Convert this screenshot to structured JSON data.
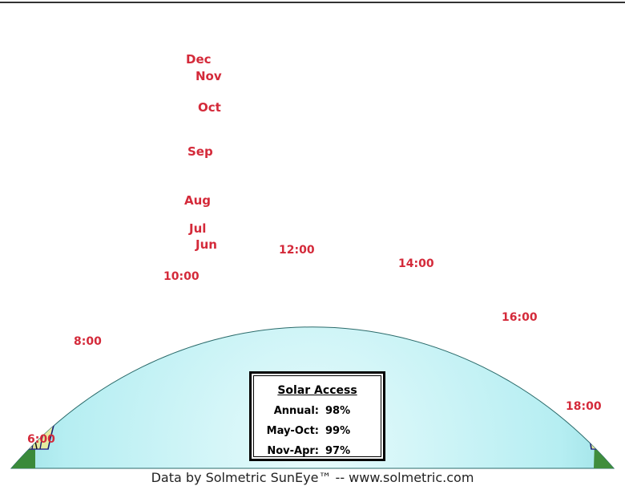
{
  "diagram": {
    "months": [
      "Dec",
      "Nov",
      "Oct",
      "Sep",
      "Aug",
      "Jul",
      "Jun"
    ],
    "hours": [
      "6:00",
      "8:00",
      "10:00",
      "12:00",
      "14:00",
      "16:00",
      "18:00"
    ],
    "colors": {
      "sky_center": "#d4f6f8",
      "sky_edge": "#6fcdd0",
      "band_fill": "#eef0a3",
      "grid_line": "#1c1c6e",
      "hour_line": "#111111",
      "label": "#d42a3a",
      "ground": "#3a8a3a"
    }
  },
  "solar_access": {
    "title": "Solar Access",
    "rows": [
      {
        "label": "Annual:",
        "value": "98%"
      },
      {
        "label": "May-Oct:",
        "value": "99%"
      },
      {
        "label": "Nov-Apr:",
        "value": "97%"
      }
    ]
  },
  "footer": "Data by Solmetric SunEye™ -- www.solmetric.com"
}
